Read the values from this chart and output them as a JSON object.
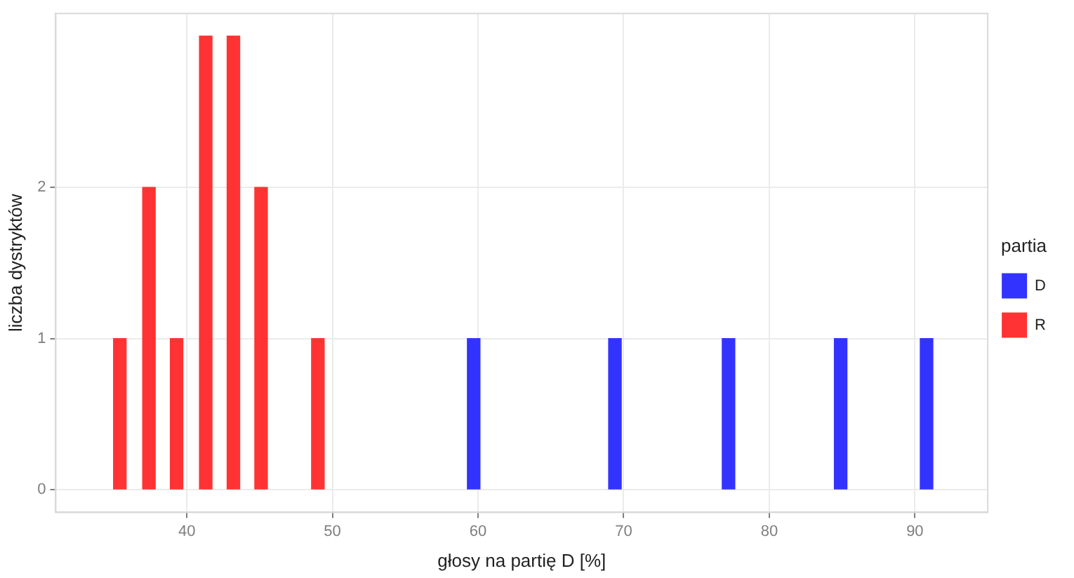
{
  "chart_data": {
    "type": "bar",
    "xlabel": "głosy na partię D [%]",
    "ylabel": "liczba dystryktów",
    "legend_title": "partia",
    "legend": "right",
    "grid": true,
    "xlim": [
      31,
      95
    ],
    "xticks": [
      40,
      50,
      60,
      70,
      80,
      90
    ],
    "ylim": [
      -0.15,
      3.15
    ],
    "yticks": [
      0,
      1,
      2
    ],
    "series": [
      {
        "name": "D",
        "color": "#3333ff",
        "x": [
          59.7,
          69.4,
          77.2,
          84.9,
          90.8
        ],
        "values": [
          1,
          1,
          1,
          1,
          1
        ]
      },
      {
        "name": "R",
        "color": "#ff3333",
        "x": [
          35.4,
          37.4,
          39.3,
          41.3,
          43.2,
          45.1,
          49.0
        ],
        "values": [
          1,
          2,
          1,
          3,
          3,
          2,
          1
        ]
      }
    ]
  }
}
